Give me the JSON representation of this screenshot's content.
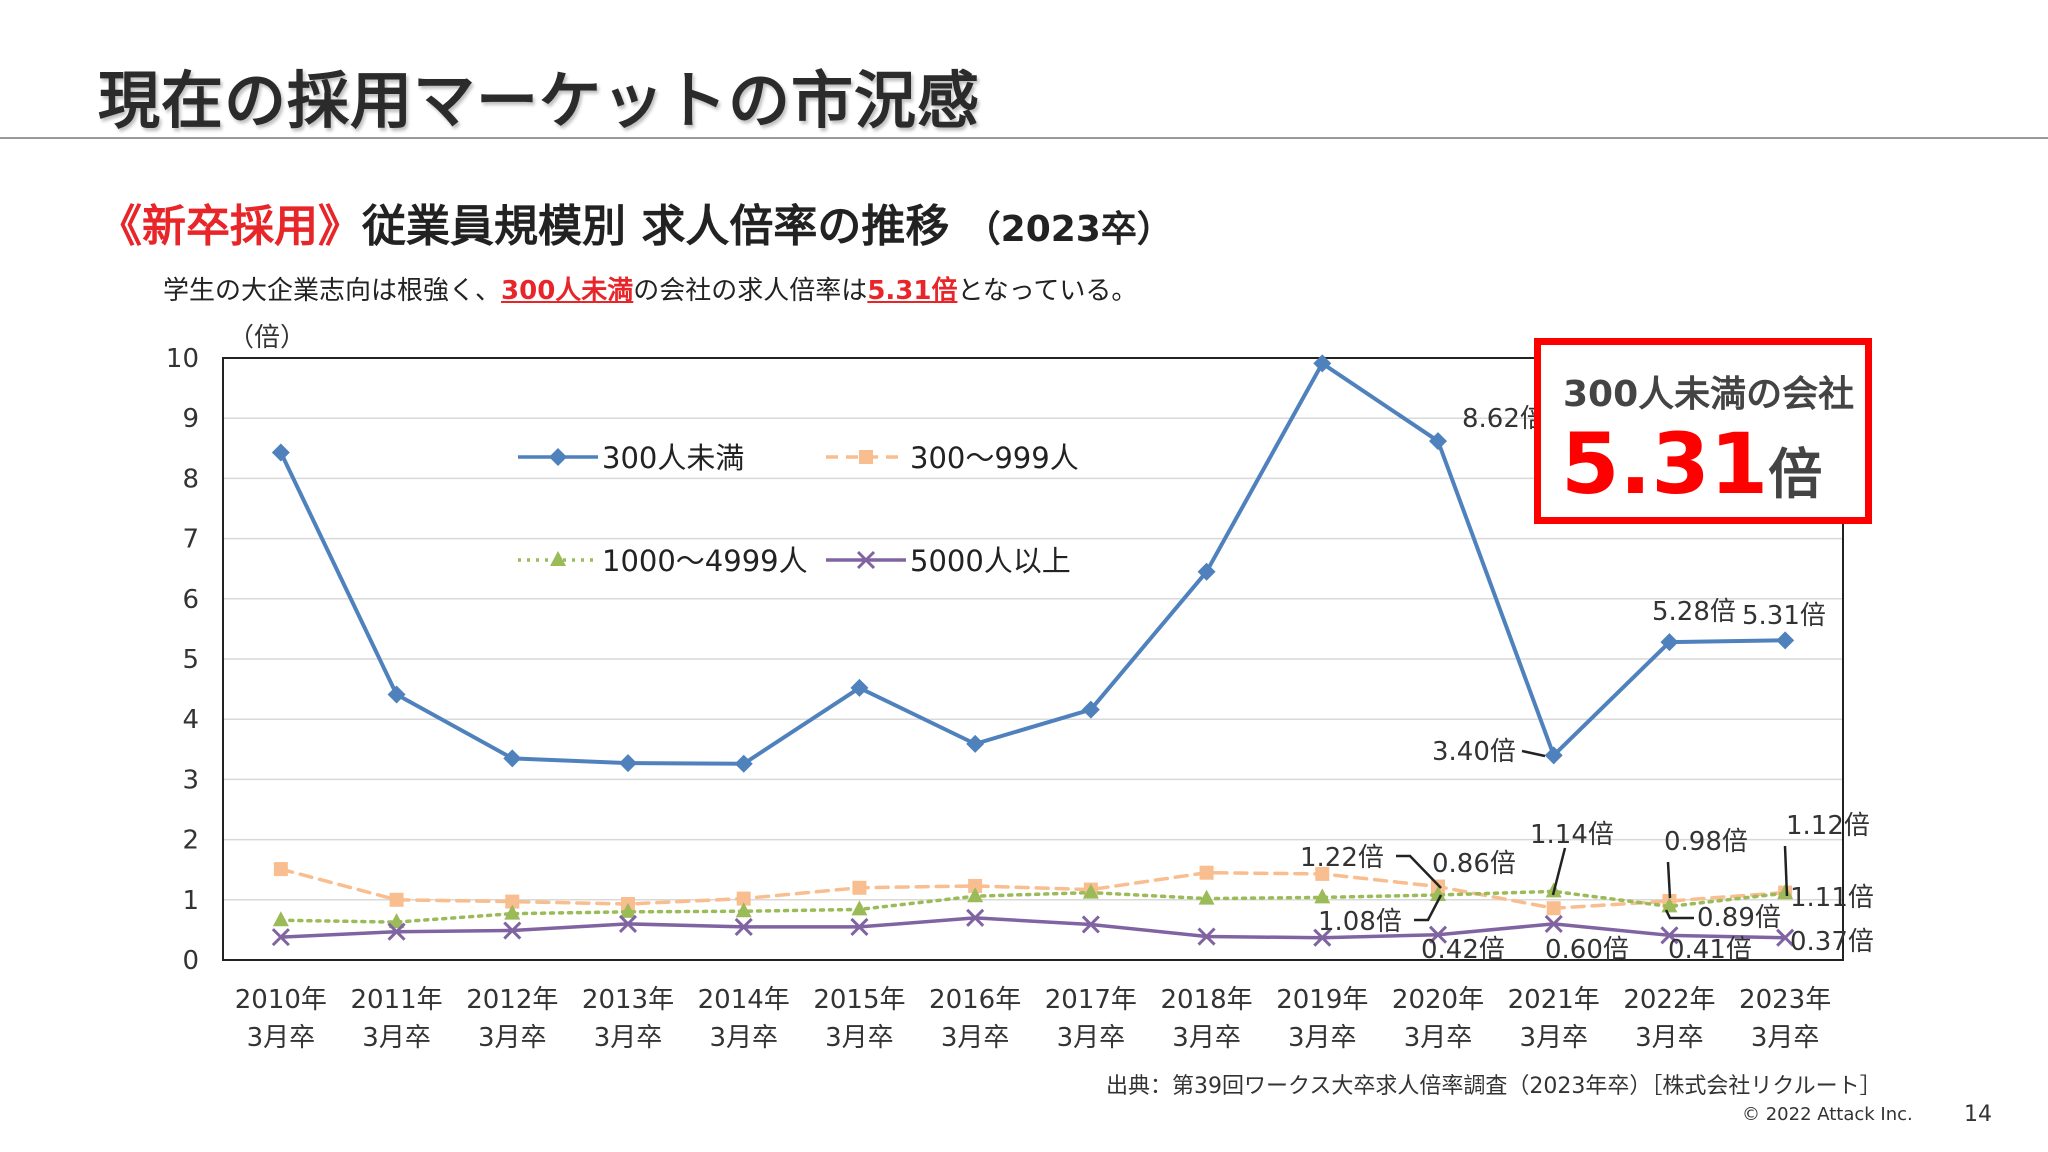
{
  "slide": {
    "title": "現在の採用マーケットの市況感",
    "subtitle_highlight": "《新卒採用》",
    "subtitle_main": "従業員規模別 求人倍率の推移",
    "subtitle_year": "（2023卒）",
    "lead_1": "学生の大企業志向は根強く、",
    "lead_em_1": "300人未満",
    "lead_2": "の会社の求人倍率は",
    "lead_em_2": "5.31倍",
    "lead_3": "となっている。",
    "callout_label": "300人未満の会社",
    "callout_value": "5.31",
    "callout_unit": "倍",
    "source": "出典：第39回ワークス大卒求人倍率調査（2023年卒）［株式会社リクルート］",
    "copyright": "© 2022 Attack Inc.",
    "page_number": "14"
  },
  "chart_data": {
    "type": "line",
    "y_unit_label": "（倍）",
    "ylim": [
      0,
      10
    ],
    "yticks": [
      "0",
      "1",
      "2",
      "3",
      "4",
      "5",
      "6",
      "7",
      "8",
      "9",
      "10"
    ],
    "grid": true,
    "legend_position": "top-left",
    "categories": [
      [
        "2010年",
        "3月卒"
      ],
      [
        "2011年",
        "3月卒"
      ],
      [
        "2012年",
        "3月卒"
      ],
      [
        "2013年",
        "3月卒"
      ],
      [
        "2014年",
        "3月卒"
      ],
      [
        "2015年",
        "3月卒"
      ],
      [
        "2016年",
        "3月卒"
      ],
      [
        "2017年",
        "3月卒"
      ],
      [
        "2018年",
        "3月卒"
      ],
      [
        "2019年",
        "3月卒"
      ],
      [
        "2020年",
        "3月卒"
      ],
      [
        "2021年",
        "3月卒"
      ],
      [
        "2022年",
        "3月卒"
      ],
      [
        "2023年",
        "3月卒"
      ]
    ],
    "series": [
      {
        "name": "300人未満",
        "color": "#4f81bd",
        "marker": "diamond",
        "dash": "solid",
        "values": [
          8.43,
          4.41,
          3.35,
          3.27,
          3.26,
          4.52,
          3.59,
          4.16,
          6.45,
          9.91,
          8.62,
          3.4,
          5.28,
          5.31
        ]
      },
      {
        "name": "300～999人",
        "color": "#f9be8f",
        "marker": "square",
        "dash": "dashed",
        "values": [
          1.51,
          1.0,
          0.97,
          0.93,
          1.02,
          1.2,
          1.23,
          1.17,
          1.45,
          1.43,
          1.22,
          0.86,
          0.98,
          1.12
        ]
      },
      {
        "name": "1000～4999人",
        "color": "#9bbb59",
        "marker": "triangle",
        "dash": "dotted",
        "values": [
          0.66,
          0.63,
          0.77,
          0.8,
          0.81,
          0.84,
          1.06,
          1.12,
          1.02,
          1.04,
          1.08,
          1.14,
          0.89,
          1.11
        ]
      },
      {
        "name": "5000人以上",
        "color": "#8064a2",
        "marker": "x",
        "dash": "solid",
        "values": [
          0.38,
          0.47,
          0.49,
          0.6,
          0.55,
          0.55,
          0.7,
          0.59,
          0.39,
          0.37,
          0.42,
          0.6,
          0.41,
          0.37
        ]
      }
    ],
    "annotations": [
      "8.62倍",
      "5.28倍",
      "5.31倍",
      "3.40倍",
      "1.22倍",
      "1.08倍",
      "0.86倍",
      "0.42倍",
      "1.14倍",
      "0.60倍",
      "0.98倍",
      "0.89倍",
      "0.41倍",
      "1.12倍",
      "1.11倍",
      "0.37倍"
    ]
  }
}
